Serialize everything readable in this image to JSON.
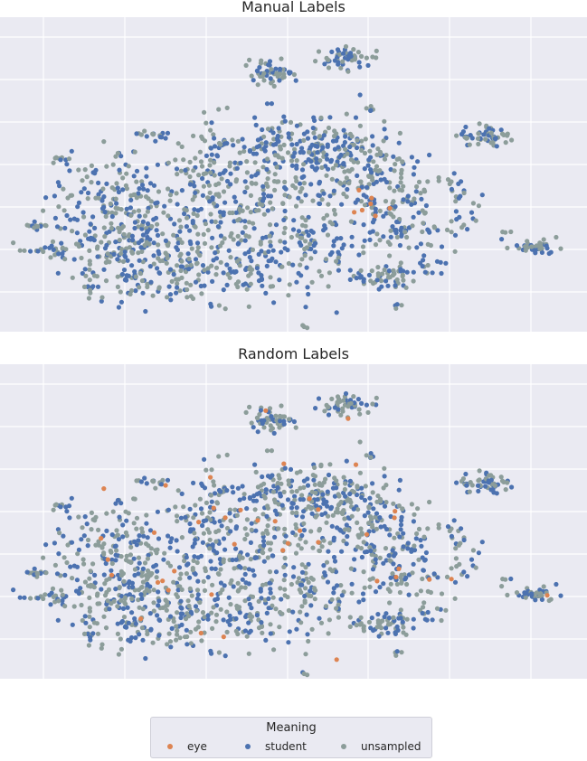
{
  "colors": {
    "eye": "#dd8452",
    "student": "#4c72b0",
    "unsampled": "#8c9d9a",
    "background": "#eaeaf2",
    "grid": "#ffffff"
  },
  "chart_data": [
    {
      "type": "scatter",
      "title": "Manual Labels",
      "grid": true,
      "series": [
        {
          "name": "eye",
          "color": "#dd8452"
        },
        {
          "name": "student",
          "color": "#4c72b0"
        },
        {
          "name": "unsampled",
          "color": "#8c9d9a"
        }
      ]
    },
    {
      "type": "scatter",
      "title": "Random Labels",
      "grid": true,
      "series": [
        {
          "name": "eye",
          "color": "#dd8452"
        },
        {
          "name": "student",
          "color": "#4c72b0"
        },
        {
          "name": "unsampled",
          "color": "#8c9d9a"
        }
      ]
    }
  ],
  "legend": {
    "title": "Meaning",
    "placement": "bottom-center",
    "entries": [
      {
        "label": "eye",
        "color": "#dd8452"
      },
      {
        "label": "student",
        "color": "#4c72b0"
      },
      {
        "label": "unsampled",
        "color": "#8c9d9a"
      }
    ]
  }
}
